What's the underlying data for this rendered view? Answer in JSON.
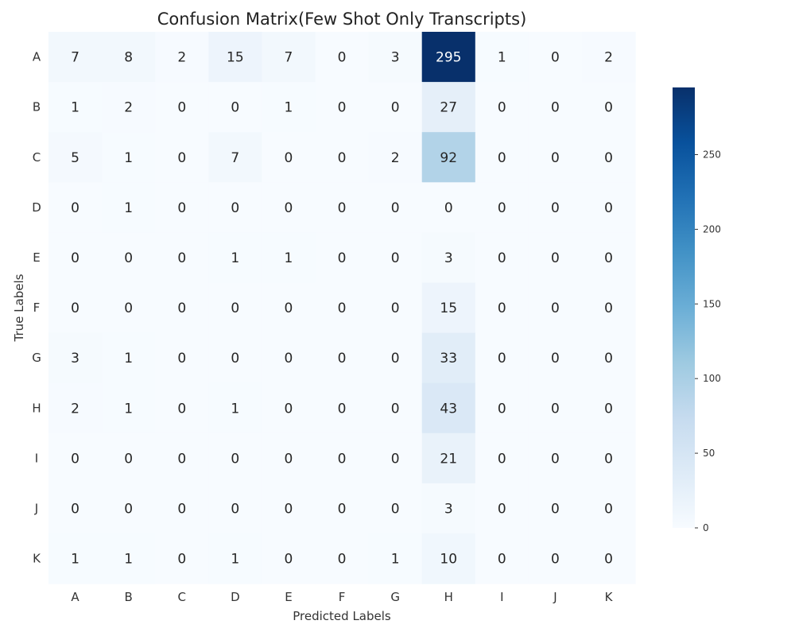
{
  "chart_data": {
    "type": "heatmap",
    "title": "Confusion Matrix(Few Shot Only Transcripts)",
    "xlabel": "Predicted Labels",
    "ylabel": "True Labels",
    "x_labels": [
      "A",
      "B",
      "C",
      "D",
      "E",
      "F",
      "G",
      "H",
      "I",
      "J",
      "K"
    ],
    "y_labels": [
      "A",
      "B",
      "C",
      "D",
      "E",
      "F",
      "G",
      "H",
      "I",
      "J",
      "K"
    ],
    "matrix": [
      [
        7,
        8,
        2,
        15,
        7,
        0,
        3,
        295,
        1,
        0,
        2
      ],
      [
        1,
        2,
        0,
        0,
        1,
        0,
        0,
        27,
        0,
        0,
        0
      ],
      [
        5,
        1,
        0,
        7,
        0,
        0,
        2,
        92,
        0,
        0,
        0
      ],
      [
        0,
        1,
        0,
        0,
        0,
        0,
        0,
        0,
        0,
        0,
        0
      ],
      [
        0,
        0,
        0,
        1,
        1,
        0,
        0,
        3,
        0,
        0,
        0
      ],
      [
        0,
        0,
        0,
        0,
        0,
        0,
        0,
        15,
        0,
        0,
        0
      ],
      [
        3,
        1,
        0,
        0,
        0,
        0,
        0,
        33,
        0,
        0,
        0
      ],
      [
        2,
        1,
        0,
        1,
        0,
        0,
        0,
        43,
        0,
        0,
        0
      ],
      [
        0,
        0,
        0,
        0,
        0,
        0,
        0,
        21,
        0,
        0,
        0
      ],
      [
        0,
        0,
        0,
        0,
        0,
        0,
        0,
        3,
        0,
        0,
        0
      ],
      [
        1,
        1,
        0,
        1,
        0,
        0,
        1,
        10,
        0,
        0,
        0
      ]
    ],
    "colormap": "Blues",
    "colorbar": {
      "range": [
        0,
        295
      ],
      "ticks": [
        0,
        50,
        100,
        150,
        200,
        250
      ]
    },
    "colors": {
      "low": "#f7fbff",
      "high": "#08306b"
    },
    "grid": false
  }
}
